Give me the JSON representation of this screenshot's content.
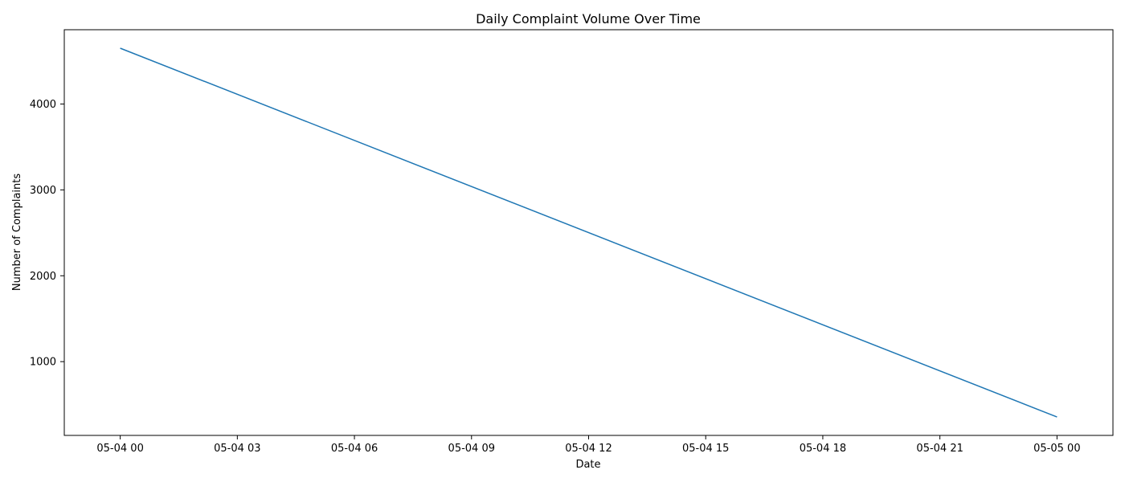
{
  "chart_data": {
    "type": "line",
    "title": "Daily Complaint Volume Over Time",
    "xlabel": "Date",
    "ylabel": "Number of Complaints",
    "x_ticks": [
      "05-04 00",
      "05-04 03",
      "05-04 06",
      "05-04 09",
      "05-04 12",
      "05-04 15",
      "05-04 18",
      "05-04 21",
      "05-05 00"
    ],
    "y_ticks": [
      1000,
      2000,
      3000,
      4000
    ],
    "xlim": [
      "05-03 22:34",
      "05-05 01:26"
    ],
    "ylim": [
      141,
      4865
    ],
    "grid": false,
    "series": [
      {
        "color": "#1f77b4",
        "points": [
          {
            "x": "05-04 00:00",
            "y": 4650
          },
          {
            "x": "05-05 00:00",
            "y": 355
          }
        ]
      }
    ]
  }
}
